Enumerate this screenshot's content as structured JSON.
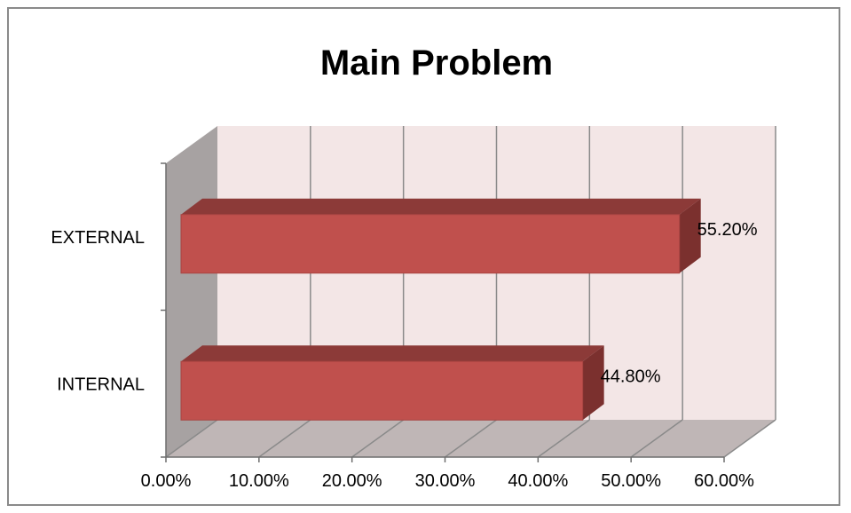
{
  "chart_data": {
    "type": "bar",
    "orientation": "horizontal",
    "three_d": true,
    "title": "Main Problem",
    "categories": [
      "INTERNAL",
      "EXTERNAL"
    ],
    "values": [
      0.448,
      0.552
    ],
    "data_labels": [
      "44.80%",
      "55.20%"
    ],
    "xlim": [
      0,
      0.6
    ],
    "x_ticks": [
      0,
      0.1,
      0.2,
      0.3,
      0.4,
      0.5,
      0.6
    ],
    "x_tick_labels": [
      "0.00%",
      "10.00%",
      "20.00%",
      "30.00%",
      "40.00%",
      "50.00%",
      "60.00%"
    ],
    "xlabel": "",
    "ylabel": "",
    "grid": true,
    "legend": "none"
  },
  "colors": {
    "bar_front": "#c0504d",
    "bar_top": "#8c3a38",
    "bar_side": "#7b302e",
    "plot_back": "#f3e6e6",
    "side_wall": "#a7a2a2",
    "floor": "#bfb6b6",
    "gridline": "#8a8a8a"
  }
}
